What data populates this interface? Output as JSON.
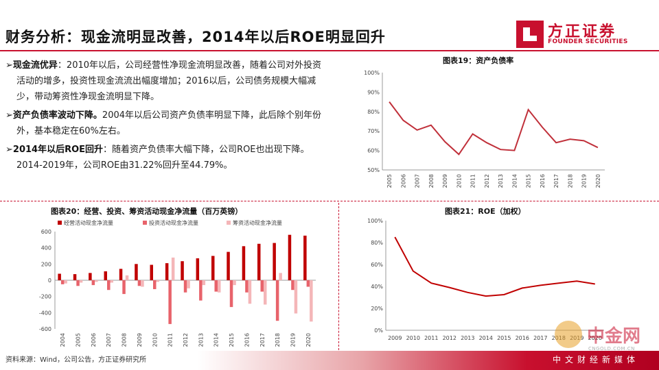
{
  "header": {
    "title": "财务分析：现金流明显改善，2014年以后ROE明显回升",
    "logo_cn": "方正证券",
    "logo_en": "FOUNDER SECURITIES"
  },
  "bullets": [
    {
      "bold": "现金流优异",
      "text": "：2010年以后，公司经营性净现金流明显改善，随着公司对外投资活动的增多，投资性现金流流出幅度增加；2016以后，公司债务规模大幅减少，带动筹资性净现金流明显下降。"
    },
    {
      "bold": "资产负债率波动下降。",
      "text": "2004年以后公司资产负债率明显下降，此后除个别年份外，基本稳定在60%左右。"
    },
    {
      "bold": "2014年以后ROE回升",
      "text": "：随着资产负债率大幅下降，公司ROE也出现下降。2014-2019年，公司ROE由31.22%回升至44.79%。"
    }
  ],
  "footer": {
    "source": "资料来源：Wind，公司公告，方正证券研究所"
  },
  "watermark": {
    "cn": "中金网",
    "site": "CNGOLD.COM.CN",
    "tag": "中文财经新媒体"
  },
  "chart_data": [
    {
      "id": "chart19",
      "type": "line",
      "title": "图表19：资产负债率",
      "categories": [
        "2005",
        "2006",
        "2007",
        "2008",
        "2009",
        "2010",
        "2011",
        "2012",
        "2013",
        "2014",
        "2015",
        "2016",
        "2017",
        "2018",
        "2019",
        "2020"
      ],
      "series": [
        {
          "name": "资产负债率",
          "values": [
            85,
            75.5,
            70.5,
            73,
            64.5,
            58,
            68.5,
            64,
            60.5,
            60,
            81,
            72,
            64,
            65.8,
            65,
            61.5
          ]
        }
      ],
      "ylim": [
        50,
        100
      ],
      "yticks": [
        "50%",
        "60%",
        "70%",
        "80%",
        "90%",
        "100%"
      ],
      "color": "#c0303a"
    },
    {
      "id": "chart20",
      "type": "bar",
      "title": "图表20：经营、投资、筹资活动现金净流量（百万英镑）",
      "categories": [
        "2004",
        "2005",
        "2006",
        "2007",
        "2008",
        "2009",
        "2010",
        "2011",
        "2012",
        "2013",
        "2014",
        "2015",
        "2016",
        "2017",
        "2018",
        "2019",
        "2020"
      ],
      "series": [
        {
          "name": "经营活动现金净流量",
          "color": "#c00000",
          "values": [
            80,
            75,
            90,
            110,
            140,
            200,
            190,
            210,
            235,
            270,
            300,
            350,
            420,
            450,
            460,
            560,
            550
          ]
        },
        {
          "name": "投资活动现金净流量",
          "color": "#e8636b",
          "values": [
            -50,
            -70,
            -60,
            -120,
            -170,
            -70,
            -110,
            -540,
            -150,
            -250,
            -140,
            -330,
            -150,
            -140,
            -500,
            -120,
            -80
          ]
        },
        {
          "name": "筹资活动现金净流量",
          "color": "#f4b6b8",
          "values": [
            -40,
            -30,
            -20,
            -30,
            60,
            -80,
            -20,
            280,
            -100,
            -60,
            -150,
            -60,
            -290,
            -300,
            90,
            -410,
            -510
          ]
        }
      ],
      "ylim": [
        -600,
        600
      ],
      "yticks": [
        "-600",
        "-400",
        "-200",
        "0",
        "200",
        "400",
        "600"
      ]
    },
    {
      "id": "chart21",
      "type": "line",
      "title": "图表21：ROE（加权）",
      "categories": [
        "2009",
        "2010",
        "2011",
        "2012",
        "2013",
        "2014",
        "2015",
        "2016",
        "2017",
        "2018",
        "2019",
        "2020"
      ],
      "series": [
        {
          "name": "ROE（加权）",
          "values": [
            85,
            54,
            43,
            39,
            34.5,
            31.2,
            32.5,
            38.5,
            41,
            43,
            44.8,
            42.2
          ]
        }
      ],
      "ylim": [
        0,
        100
      ],
      "yticks": [
        "0%",
        "20%",
        "40%",
        "60%",
        "80%",
        "100%"
      ],
      "color": "#c00000"
    }
  ]
}
